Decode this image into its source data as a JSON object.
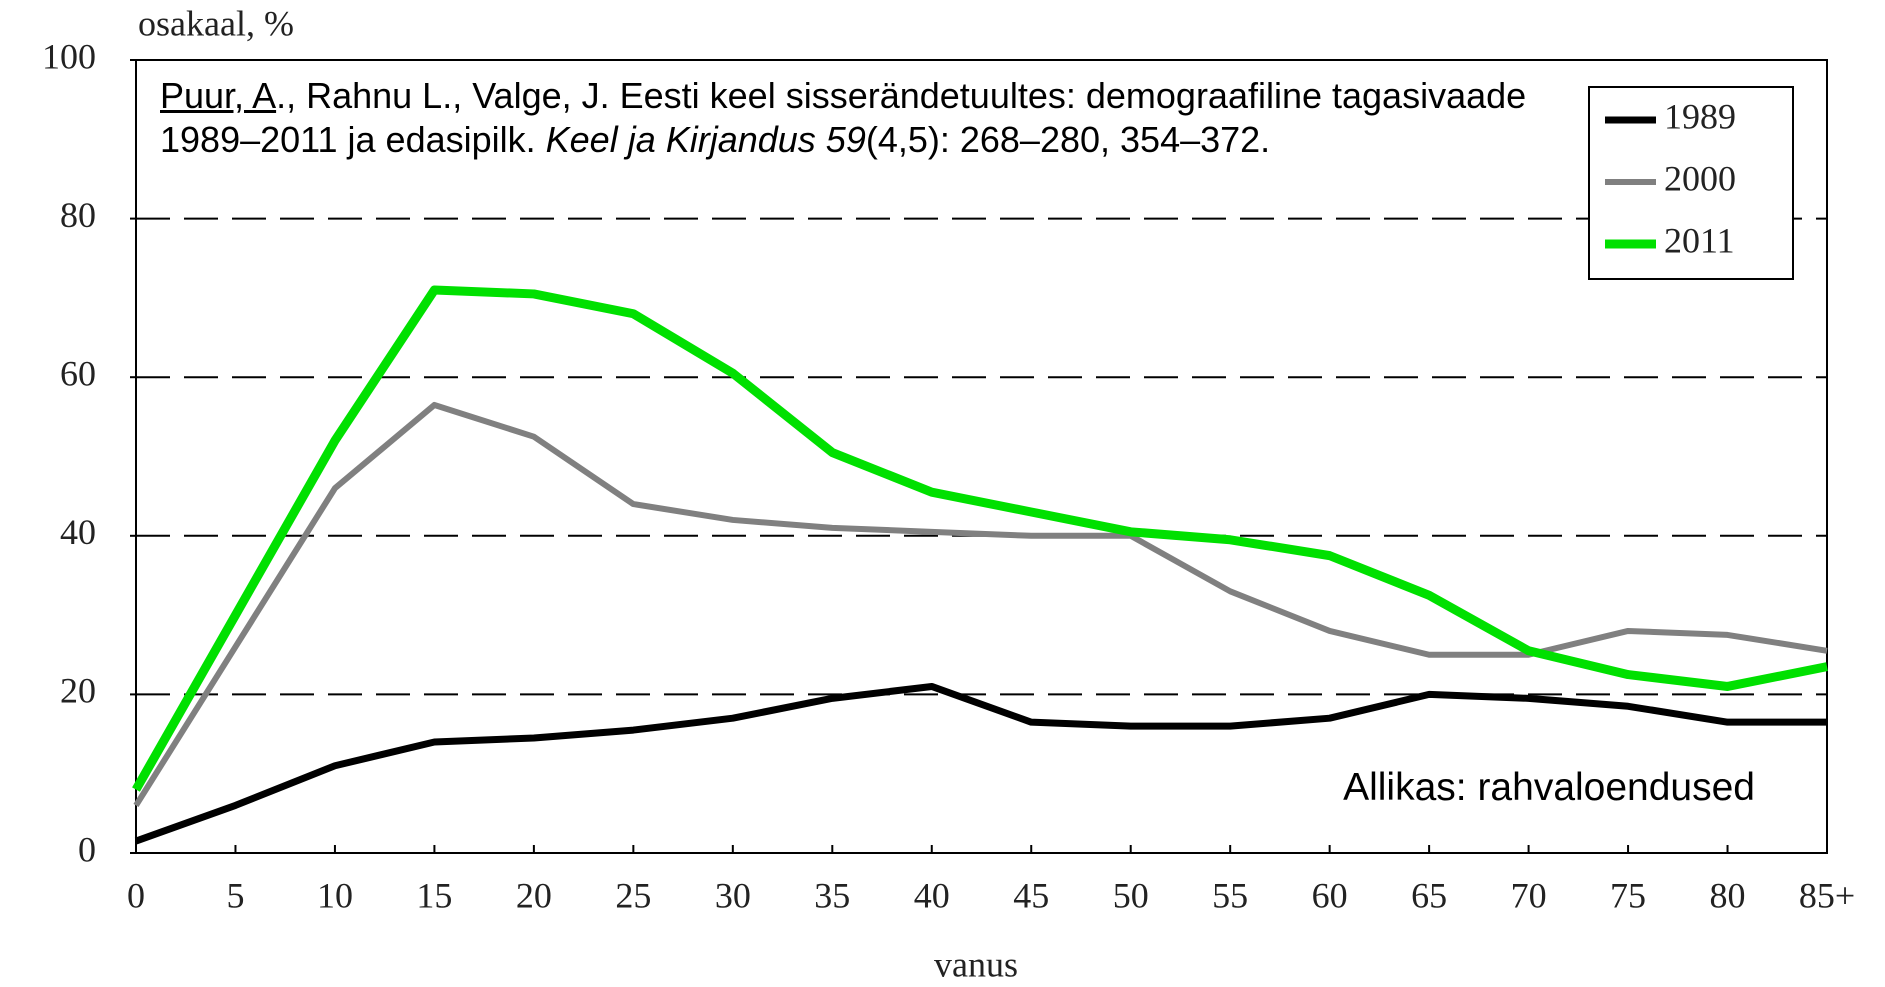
{
  "chart_data": {
    "type": "line",
    "y_label": "osakaal, %",
    "x_label": "vanus",
    "categories": [
      "0",
      "5",
      "10",
      "15",
      "20",
      "25",
      "30",
      "35",
      "40",
      "45",
      "50",
      "55",
      "60",
      "65",
      "70",
      "75",
      "80",
      "85+"
    ],
    "series": [
      {
        "name": "1989",
        "color": "#000000",
        "values": [
          1.5,
          6,
          11,
          14,
          14.5,
          15.5,
          17,
          19.5,
          21,
          16.5,
          16,
          16,
          17,
          20,
          19.5,
          18.5,
          16.5,
          16.5
        ]
      },
      {
        "name": "2000",
        "color": "#808080",
        "values": [
          6,
          26,
          46,
          56.5,
          52.5,
          44,
          42,
          41,
          40.5,
          40,
          40,
          33,
          28,
          25,
          25,
          28,
          27.5,
          25.5
        ]
      },
      {
        "name": "2011",
        "color": "#00e000",
        "values": [
          8,
          30,
          52,
          71,
          70.5,
          68,
          60.5,
          50.5,
          45.5,
          43,
          40.5,
          39.5,
          37.5,
          32.5,
          25.5,
          22.5,
          21,
          23.5
        ]
      }
    ],
    "ylim": [
      0,
      100
    ],
    "yticks": [
      0,
      20,
      40,
      60,
      80,
      100
    ],
    "grid": true,
    "legend": "upper right",
    "citation": [
      "Puur, A",
      "., Rahnu L., Valge, J. Eesti keel sisserändetuultes: demograafiline tagasivaade 1989–2011 ja edasipilk. ",
      "Keel ja Kirjandus 59",
      "(4,5): 268–280, 354–372."
    ],
    "source": "Allikas: rahvaloendused"
  }
}
